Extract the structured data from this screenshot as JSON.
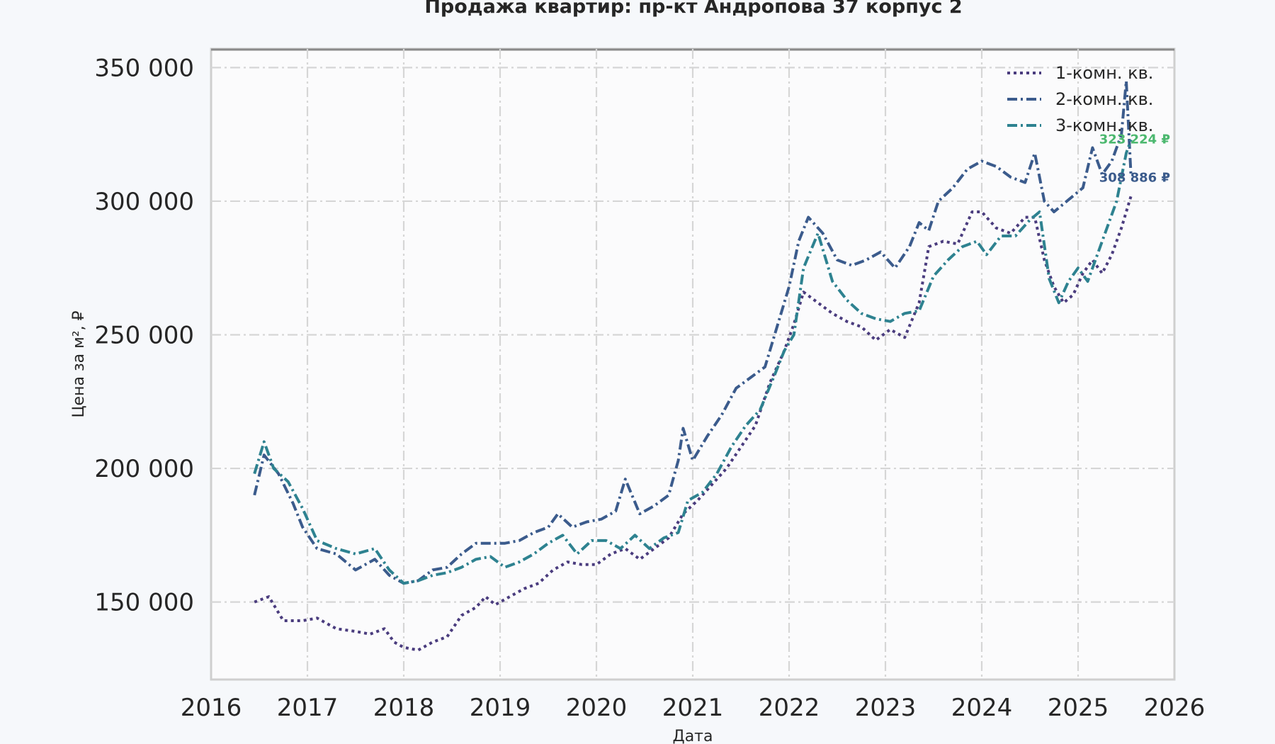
{
  "chart_data": {
    "type": "line",
    "title": "Продажа квартир: пр-кт Андропова 37 корпус 2",
    "xlabel": "Дата",
    "ylabel": "Цена за м², ₽",
    "xlim": [
      2016,
      2026
    ],
    "ylim": [
      121000,
      357000
    ],
    "x_ticks": [
      "2016",
      "2017",
      "2018",
      "2019",
      "2020",
      "2021",
      "2022",
      "2023",
      "2024",
      "2025",
      "2026"
    ],
    "y_ticks": [
      {
        "value": 150000,
        "label": "150 000"
      },
      {
        "value": 200000,
        "label": "200 000"
      },
      {
        "value": 250000,
        "label": "250 000"
      },
      {
        "value": 300000,
        "label": "300 000"
      },
      {
        "value": 350000,
        "label": "350 000"
      }
    ],
    "grid": true,
    "legend_position": "top-right",
    "series": [
      {
        "name": "1-комн. кв.",
        "color": "#4a3c7e",
        "dash": "dotted",
        "x": [
          2016.45,
          2016.6,
          2016.75,
          2016.95,
          2017.1,
          2017.3,
          2017.5,
          2017.65,
          2017.8,
          2017.9,
          2018.0,
          2018.15,
          2018.3,
          2018.45,
          2018.6,
          2018.75,
          2018.85,
          2018.95,
          2019.1,
          2019.25,
          2019.4,
          2019.55,
          2019.7,
          2019.85,
          2020.0,
          2020.15,
          2020.3,
          2020.45,
          2020.6,
          2020.75,
          2020.9,
          2021.05,
          2021.2,
          2021.35,
          2021.5,
          2021.65,
          2021.8,
          2021.95,
          2022.05,
          2022.15,
          2022.3,
          2022.45,
          2022.6,
          2022.75,
          2022.9,
          2023.05,
          2023.2,
          2023.35,
          2023.45,
          2023.6,
          2023.75,
          2023.9,
          2024.0,
          2024.15,
          2024.3,
          2024.45,
          2024.55,
          2024.65,
          2024.75,
          2024.85,
          2024.95,
          2025.05,
          2025.15,
          2025.25,
          2025.35,
          2025.45,
          2025.5,
          2025.55
        ],
        "y": [
          150000,
          152000,
          143000,
          143000,
          144000,
          140000,
          139000,
          138000,
          140000,
          135000,
          133000,
          132000,
          135000,
          137000,
          145000,
          148000,
          152000,
          149000,
          152000,
          155000,
          157000,
          162000,
          165000,
          164000,
          164000,
          168000,
          170000,
          166000,
          170000,
          174000,
          183000,
          188000,
          194000,
          200000,
          208000,
          216000,
          232000,
          244000,
          254000,
          266000,
          262000,
          258000,
          255000,
          253000,
          248000,
          252000,
          249000,
          262000,
          283000,
          285000,
          284000,
          296000,
          296000,
          290000,
          288000,
          294000,
          294000,
          278000,
          268000,
          262000,
          265000,
          273000,
          278000,
          273000,
          280000,
          290000,
          296000,
          302000
        ]
      },
      {
        "name": "2-комн. кв.",
        "color": "#3b5b8c",
        "dash": "dashdot",
        "x": [
          2016.45,
          2016.55,
          2016.7,
          2016.85,
          2016.95,
          2017.1,
          2017.3,
          2017.5,
          2017.7,
          2017.85,
          2018.0,
          2018.15,
          2018.3,
          2018.45,
          2018.6,
          2018.75,
          2018.9,
          2019.05,
          2019.2,
          2019.35,
          2019.5,
          2019.6,
          2019.75,
          2019.9,
          2020.05,
          2020.2,
          2020.3,
          2020.45,
          2020.6,
          2020.75,
          2020.85,
          2020.9,
          2021.0,
          2021.15,
          2021.3,
          2021.45,
          2021.6,
          2021.75,
          2021.9,
          2022.0,
          2022.1,
          2022.2,
          2022.35,
          2022.5,
          2022.65,
          2022.8,
          2022.95,
          2023.1,
          2023.25,
          2023.35,
          2023.45,
          2023.55,
          2023.7,
          2023.85,
          2024.0,
          2024.15,
          2024.3,
          2024.45,
          2024.55,
          2024.65,
          2024.75,
          2024.85,
          2024.95,
          2025.05,
          2025.15,
          2025.25,
          2025.35,
          2025.45,
          2025.5,
          2025.55
        ],
        "y": [
          190000,
          205000,
          198000,
          187000,
          178000,
          170000,
          168000,
          162000,
          166000,
          160000,
          157000,
          158000,
          162000,
          163000,
          168000,
          172000,
          172000,
          172000,
          173000,
          176000,
          178000,
          183000,
          178000,
          180000,
          181000,
          184000,
          196000,
          183000,
          186000,
          190000,
          203000,
          215000,
          203000,
          212000,
          220000,
          230000,
          234000,
          238000,
          256000,
          268000,
          285000,
          294000,
          288000,
          278000,
          276000,
          278000,
          281000,
          275000,
          283000,
          292000,
          289000,
          300000,
          305000,
          312000,
          315000,
          313000,
          309000,
          307000,
          318000,
          300000,
          296000,
          299000,
          302000,
          305000,
          320000,
          310000,
          315000,
          325000,
          345000,
          309000
        ]
      },
      {
        "name": "3-комн. кв.",
        "color": "#2e8290",
        "dash": "dashdot",
        "x": [
          2016.45,
          2016.55,
          2016.65,
          2016.8,
          2016.95,
          2017.1,
          2017.3,
          2017.5,
          2017.7,
          2017.85,
          2018.0,
          2018.15,
          2018.3,
          2018.45,
          2018.6,
          2018.75,
          2018.9,
          2019.05,
          2019.2,
          2019.35,
          2019.5,
          2019.65,
          2019.8,
          2019.95,
          2020.1,
          2020.25,
          2020.4,
          2020.55,
          2020.7,
          2020.85,
          2020.95,
          2021.1,
          2021.25,
          2021.4,
          2021.55,
          2021.7,
          2021.85,
          2021.95,
          2022.05,
          2022.15,
          2022.3,
          2022.45,
          2022.6,
          2022.75,
          2022.9,
          2023.05,
          2023.2,
          2023.35,
          2023.5,
          2023.65,
          2023.8,
          2023.95,
          2024.05,
          2024.2,
          2024.35,
          2024.5,
          2024.6,
          2024.7,
          2024.8,
          2024.9,
          2025.0,
          2025.1,
          2025.2,
          2025.3,
          2025.4,
          2025.5,
          2025.55
        ],
        "y": [
          198000,
          210000,
          200000,
          195000,
          185000,
          173000,
          170000,
          168000,
          170000,
          162000,
          157000,
          158000,
          160000,
          161000,
          163000,
          166000,
          167000,
          163000,
          165000,
          168000,
          172000,
          175000,
          168000,
          173000,
          173000,
          170000,
          175000,
          170000,
          174000,
          176000,
          188000,
          191000,
          198000,
          208000,
          216000,
          222000,
          235000,
          244000,
          250000,
          275000,
          288000,
          270000,
          263000,
          258000,
          256000,
          255000,
          258000,
          259000,
          272000,
          278000,
          283000,
          285000,
          280000,
          287000,
          287000,
          293000,
          296000,
          271000,
          262000,
          270000,
          275000,
          270000,
          280000,
          290000,
          300000,
          318000,
          323000
        ]
      }
    ],
    "end_labels": [
      {
        "series": "3-комн. кв.",
        "value": 323224,
        "text": "323 224 ₽",
        "color": "#4cb86f"
      },
      {
        "series": "2-комн. кв.",
        "value": 308886,
        "text": "308 886 ₽",
        "color": "#3b5b8c"
      }
    ]
  }
}
